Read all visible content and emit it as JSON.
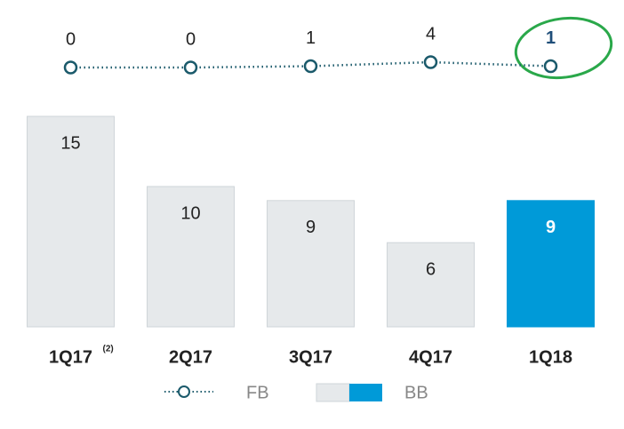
{
  "chart_data": {
    "type": "bar",
    "categories": [
      "1Q17",
      "2Q17",
      "3Q17",
      "4Q17",
      "1Q18"
    ],
    "category_marks": [
      "(2)",
      null,
      null,
      null,
      null
    ],
    "ylim": [
      0,
      15
    ],
    "y2lim": [
      0,
      4
    ],
    "series": [
      {
        "name": "FB",
        "type": "line",
        "axis": "y2",
        "color": "#1b5a6b",
        "values": [
          0,
          0,
          1,
          4,
          1
        ]
      },
      {
        "name": "BB",
        "type": "bar",
        "color": "#e6e9eb",
        "colors": [
          "#e6e9eb",
          "#e6e9eb",
          "#e6e9eb",
          "#e6e9eb",
          "#009ad8"
        ],
        "values": [
          15,
          10,
          9,
          6,
          9
        ]
      }
    ],
    "highlight_index": 4
  }
}
